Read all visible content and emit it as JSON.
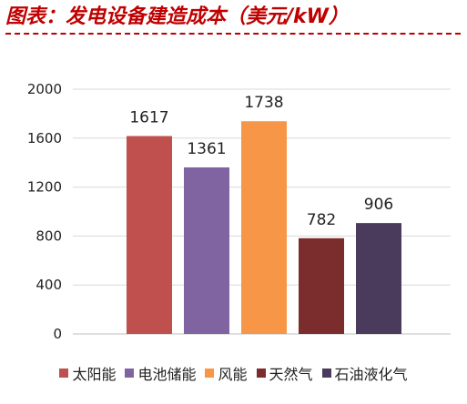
{
  "title": "图表：发电设备建造成本（美元/kW）",
  "chart_data": {
    "type": "bar",
    "title": "图表：发电设备建造成本（美元/kW）",
    "categories": [
      "太阳能",
      "电池储能",
      "风能",
      "天然气",
      "石油液化气"
    ],
    "values": [
      1617,
      1361,
      1738,
      782,
      906
    ],
    "data_labels": [
      "1617",
      "1361",
      "1738",
      "782",
      "906"
    ],
    "colors": [
      "#c0504d",
      "#8064a2",
      "#f79646",
      "#7b2c2c",
      "#4a3b5c"
    ],
    "ylim": [
      0,
      2000
    ],
    "yticks": [
      0,
      400,
      800,
      1200,
      1600,
      2000
    ],
    "ytick_labels": [
      "0",
      "400",
      "800",
      "1200",
      "1600",
      "2000"
    ],
    "grid": true,
    "legend_position": "bottom",
    "legend": [
      {
        "name": "太阳能",
        "color": "#c0504d"
      },
      {
        "name": "电池储能",
        "color": "#8064a2"
      },
      {
        "name": "风能",
        "color": "#f79646"
      },
      {
        "name": "天然气",
        "color": "#7b2c2c"
      },
      {
        "name": "石油液化气",
        "color": "#4a3b5c"
      }
    ],
    "xlabel": "",
    "ylabel": ""
  }
}
